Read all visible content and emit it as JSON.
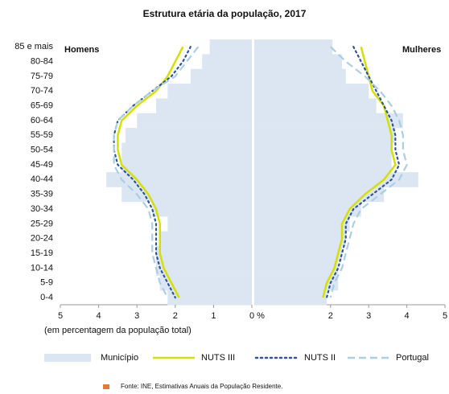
{
  "chart_data": {
    "type": "pyramid",
    "title": "Estrutura etária da população, 2017",
    "left_label": "Homens",
    "right_label": "Mulheres",
    "categories": [
      "85 e mais",
      "80-84",
      "75-79",
      "70-74",
      "65-69",
      "60-64",
      "55-59",
      "50-54",
      "45-49",
      "40-44",
      "35-39",
      "30-34",
      "25-29",
      "20-24",
      "15-19",
      "10-14",
      "5-9",
      "0-4"
    ],
    "xlim": [
      0,
      5
    ],
    "xticks_left": [
      5,
      4,
      3,
      2,
      1,
      {
        "value": 0,
        "label": "0 %"
      }
    ],
    "xticks_right": [
      2,
      3,
      4,
      5
    ],
    "xlabel": "(em percentagem da população total)",
    "series": [
      {
        "name": "Município",
        "kind": "bar",
        "color": "#dce6f2",
        "left": [
          1.1,
          1.3,
          1.6,
          2.2,
          2.5,
          3.0,
          3.3,
          3.4,
          3.4,
          3.8,
          3.4,
          2.6,
          2.2,
          2.4,
          2.5,
          2.5,
          2.4,
          2.2
        ],
        "right": [
          2.05,
          2.3,
          2.4,
          3.0,
          3.2,
          3.9,
          3.7,
          3.6,
          3.6,
          4.3,
          3.4,
          2.8,
          2.5,
          2.4,
          2.3,
          2.2,
          2.2,
          1.9
        ]
      },
      {
        "name": "NUTS III",
        "kind": "line",
        "color": "#d4e000",
        "dash": "solid",
        "left": [
          1.8,
          2.0,
          2.2,
          2.5,
          3.0,
          3.4,
          3.5,
          3.5,
          3.4,
          3.0,
          2.7,
          2.5,
          2.4,
          2.4,
          2.4,
          2.3,
          2.1,
          1.9
        ],
        "right": [
          2.8,
          2.9,
          3.0,
          3.1,
          3.4,
          3.5,
          3.6,
          3.6,
          3.7,
          3.4,
          2.9,
          2.5,
          2.3,
          2.3,
          2.2,
          2.1,
          1.9,
          1.8
        ]
      },
      {
        "name": "NUTS II",
        "kind": "line",
        "color": "#2f5597",
        "dash": "dotted",
        "left": [
          1.6,
          1.8,
          2.1,
          2.6,
          3.1,
          3.5,
          3.6,
          3.6,
          3.5,
          3.1,
          2.8,
          2.6,
          2.5,
          2.5,
          2.5,
          2.4,
          2.2,
          2.0
        ],
        "right": [
          2.6,
          2.8,
          3.0,
          3.2,
          3.4,
          3.6,
          3.7,
          3.7,
          3.8,
          3.6,
          3.1,
          2.6,
          2.4,
          2.4,
          2.3,
          2.2,
          2.0,
          1.9
        ]
      },
      {
        "name": "Portugal",
        "kind": "line",
        "color": "#a9cfe0",
        "dash": "dashed",
        "left": [
          1.4,
          1.7,
          2.0,
          2.6,
          3.1,
          3.5,
          3.6,
          3.6,
          3.6,
          3.4,
          3.0,
          2.7,
          2.6,
          2.6,
          2.6,
          2.5,
          2.4,
          2.2
        ],
        "right": [
          2.0,
          2.4,
          2.9,
          3.3,
          3.6,
          3.8,
          3.9,
          3.9,
          4.0,
          3.8,
          3.3,
          2.8,
          2.6,
          2.5,
          2.4,
          2.3,
          2.1,
          2.0
        ]
      }
    ],
    "source": "Fonte: INE, Estimativas Anuais da População Residente."
  }
}
